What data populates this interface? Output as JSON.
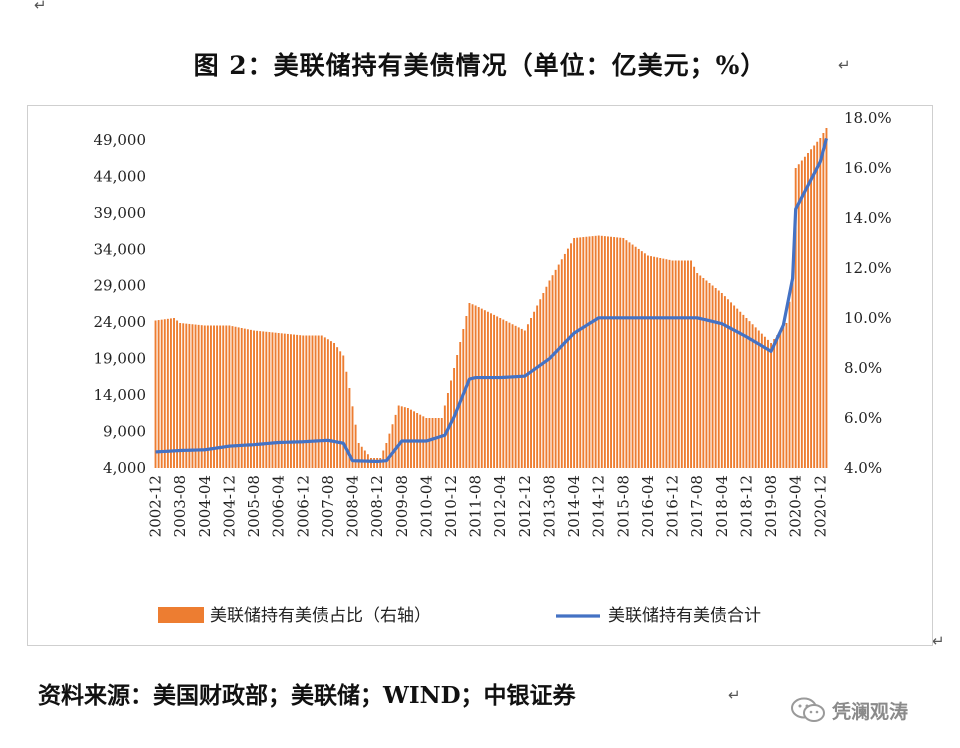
{
  "figure": {
    "title": "图 2：美联储持有美债情况（单位：亿美元；%）",
    "source": "资料来源：美国财政部；美联储；WIND；中银证券",
    "watermark_text": "凭澜观涛",
    "watermark_icon": "wechat-logo-icon",
    "para_mark": "↵"
  },
  "chart_data": {
    "type": "bar+line",
    "title": "",
    "xlabel": "",
    "left_axis": {
      "ylim": [
        4000,
        52000
      ],
      "ticks": [
        4000,
        9000,
        14000,
        19000,
        24000,
        29000,
        34000,
        39000,
        44000,
        49000
      ],
      "tick_labels": [
        "4,000",
        "9,000",
        "14,000",
        "19,000",
        "24,000",
        "29,000",
        "34,000",
        "39,000",
        "44,000",
        "49,000"
      ]
    },
    "right_axis": {
      "ylim": [
        4.0,
        18.0
      ],
      "ticks": [
        4,
        6,
        8,
        10,
        12,
        14,
        16,
        18
      ],
      "tick_labels": [
        "4.0%",
        "6.0%",
        "8.0%",
        "10.0%",
        "12.0%",
        "14.0%",
        "16.0%",
        "18.0%"
      ]
    },
    "x_tick_labels": [
      "2002-12",
      "2003-08",
      "2004-04",
      "2004-12",
      "2005-08",
      "2006-04",
      "2006-12",
      "2007-08",
      "2008-04",
      "2008-12",
      "2009-08",
      "2010-04",
      "2010-12",
      "2011-08",
      "2012-04",
      "2012-12",
      "2013-08",
      "2014-04",
      "2014-12",
      "2015-08",
      "2016-04",
      "2016-12",
      "2017-08",
      "2018-04",
      "2018-12",
      "2019-08",
      "2020-04",
      "2020-12"
    ],
    "legend_position": "bottom",
    "series": [
      {
        "name": "美联储持有美债占比（右轴）",
        "kind": "bar",
        "axis": "right",
        "color": "#ED7D31",
        "anchors": [
          [
            "2002-12",
            9.9
          ],
          [
            "2003-06",
            10.0
          ],
          [
            "2003-08",
            9.8
          ],
          [
            "2004-04",
            9.7
          ],
          [
            "2004-12",
            9.7
          ],
          [
            "2005-08",
            9.5
          ],
          [
            "2006-04",
            9.4
          ],
          [
            "2006-12",
            9.3
          ],
          [
            "2007-06",
            9.3
          ],
          [
            "2007-10",
            9.0
          ],
          [
            "2008-01",
            8.5
          ],
          [
            "2008-03",
            7.2
          ],
          [
            "2008-06",
            5.0
          ],
          [
            "2008-10",
            4.4
          ],
          [
            "2009-01",
            4.4
          ],
          [
            "2009-03",
            5.0
          ],
          [
            "2009-07",
            6.5
          ],
          [
            "2009-10",
            6.4
          ],
          [
            "2010-04",
            6.0
          ],
          [
            "2010-09",
            6.0
          ],
          [
            "2011-01",
            8.0
          ],
          [
            "2011-06",
            10.6
          ],
          [
            "2011-08",
            10.5
          ],
          [
            "2012-04",
            10.0
          ],
          [
            "2012-12",
            9.5
          ],
          [
            "2013-08",
            11.5
          ],
          [
            "2014-04",
            13.2
          ],
          [
            "2014-12",
            13.3
          ],
          [
            "2015-08",
            13.2
          ],
          [
            "2016-04",
            12.5
          ],
          [
            "2016-12",
            12.3
          ],
          [
            "2017-06",
            12.3
          ],
          [
            "2017-08",
            11.8
          ],
          [
            "2018-04",
            11.0
          ],
          [
            "2018-12",
            10.0
          ],
          [
            "2019-08",
            9.0
          ],
          [
            "2020-01",
            9.8
          ],
          [
            "2020-03",
            11.5
          ],
          [
            "2020-04",
            16.0
          ],
          [
            "2020-12",
            17.2
          ],
          [
            "2021-02",
            17.6
          ]
        ]
      },
      {
        "name": "美联储持有美债合计",
        "kind": "line",
        "axis": "left",
        "color": "#4472C4",
        "anchors": [
          [
            "2002-12",
            6200
          ],
          [
            "2003-08",
            6400
          ],
          [
            "2004-04",
            6500
          ],
          [
            "2004-12",
            7000
          ],
          [
            "2005-08",
            7200
          ],
          [
            "2006-04",
            7500
          ],
          [
            "2006-12",
            7600
          ],
          [
            "2007-08",
            7800
          ],
          [
            "2008-01",
            7400
          ],
          [
            "2008-04",
            5000
          ],
          [
            "2008-12",
            4900
          ],
          [
            "2009-03",
            5000
          ],
          [
            "2009-08",
            7700
          ],
          [
            "2010-04",
            7700
          ],
          [
            "2010-10",
            8500
          ],
          [
            "2011-01",
            11000
          ],
          [
            "2011-06",
            16200
          ],
          [
            "2011-08",
            16400
          ],
          [
            "2012-04",
            16400
          ],
          [
            "2012-12",
            16600
          ],
          [
            "2013-08",
            19000
          ],
          [
            "2014-04",
            22500
          ],
          [
            "2014-12",
            24600
          ],
          [
            "2015-08",
            24600
          ],
          [
            "2016-04",
            24600
          ],
          [
            "2016-12",
            24600
          ],
          [
            "2017-08",
            24600
          ],
          [
            "2018-04",
            23800
          ],
          [
            "2018-12",
            22000
          ],
          [
            "2019-08",
            20000
          ],
          [
            "2019-12",
            23600
          ],
          [
            "2020-03",
            30000
          ],
          [
            "2020-04",
            39500
          ],
          [
            "2020-12",
            46000
          ],
          [
            "2021-02",
            49200
          ]
        ]
      }
    ]
  }
}
